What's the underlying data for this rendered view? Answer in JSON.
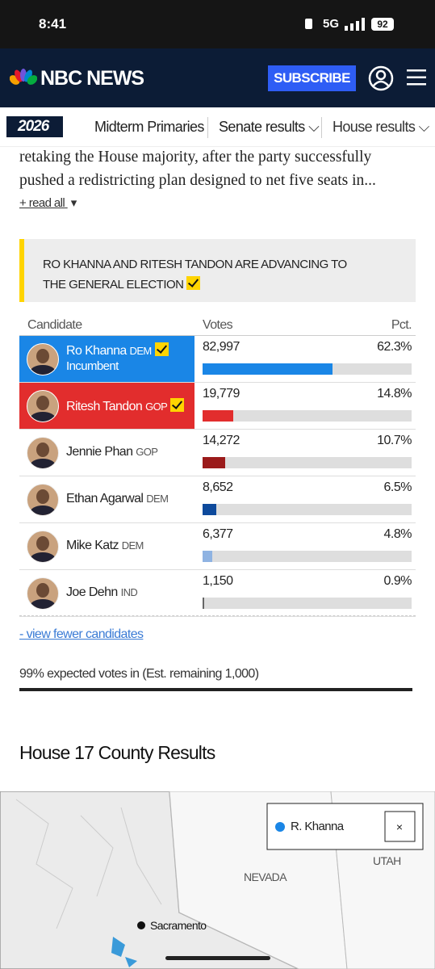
{
  "status_bar": {
    "time": "8:41",
    "network": "5G",
    "battery": "92"
  },
  "header": {
    "logo": "NBC NEWS",
    "subscribe": "SUBSCRIBE"
  },
  "nav": {
    "badge": "2026",
    "items": [
      "Midterm Primaries",
      "Senate results",
      "House results"
    ]
  },
  "article": {
    "lines": [
      "retaking the House majority, after the party successfully",
      "pushed a redistricting plan designed to net five seats in..."
    ],
    "read_all": "+ read all"
  },
  "banner": {
    "text": "RO KHANNA AND RITESH TANDON ARE ADVANCING TO THE GENERAL ELECTION"
  },
  "results": {
    "headers": [
      "Candidate",
      "Votes",
      "Pct."
    ],
    "candidates": [
      {
        "name": "Ro Khanna",
        "party": "DEM",
        "note": "Incumbent",
        "votes": "82,997",
        "pct": "62.3%",
        "color": "#1a86e6",
        "advancing": true
      },
      {
        "name": "Ritesh Tandon",
        "party": "GOP",
        "votes": "19,779",
        "pct": "14.8%",
        "color": "#e22d2d",
        "advancing": true
      },
      {
        "name": "Jennie Phan",
        "party": "GOP",
        "votes": "14,272",
        "pct": "10.7%",
        "color": "#9b1b1b",
        "advancing": false
      },
      {
        "name": "Ethan Agarwal",
        "party": "DEM",
        "votes": "8,652",
        "pct": "6.5%",
        "color": "#0e4a9c",
        "advancing": false
      },
      {
        "name": "Mike Katz",
        "party": "DEM",
        "votes": "6,377",
        "pct": "4.8%",
        "color": "#8fb3e2",
        "advancing": false
      },
      {
        "name": "Joe Dehn",
        "party": "IND",
        "votes": "1,150",
        "pct": "0.9%",
        "color": "#666666",
        "advancing": false
      }
    ],
    "view_fewer": "- view fewer candidates",
    "expected": "99% expected votes in (Est. remaining 1,000)"
  },
  "map": {
    "title": "House 17 County Results",
    "legend": "R. Khanna",
    "labels": [
      "NEVADA",
      "UTAH"
    ],
    "city": "Sacramento"
  }
}
